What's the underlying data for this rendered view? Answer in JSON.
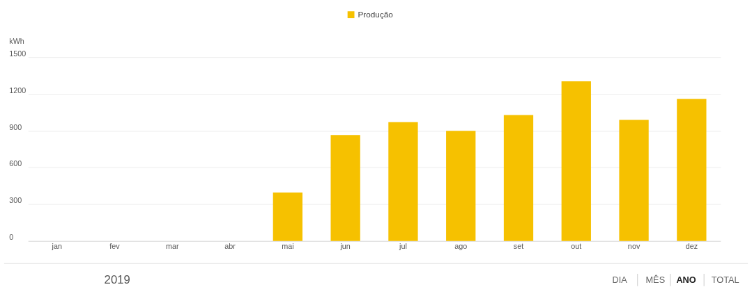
{
  "chart_data": {
    "type": "bar",
    "categories": [
      "jan",
      "fev",
      "mar",
      "abr",
      "mai",
      "jun",
      "jul",
      "ago",
      "set",
      "out",
      "nov",
      "dez"
    ],
    "series": [
      {
        "name": "Produção",
        "color": "#f6c100",
        "values": [
          0,
          0,
          0,
          0,
          395,
          864,
          969,
          899,
          1027,
          1302,
          988,
          1159
        ]
      }
    ],
    "ylabel": "kWh",
    "ylim": [
      0,
      1500
    ],
    "yticks": [
      0,
      300,
      600,
      900,
      1200,
      1500
    ],
    "grid": "y",
    "legend": "top",
    "annotations": [
      "2019",
      "DIA",
      "MÊS",
      "ANO",
      "TOTAL"
    ]
  }
}
